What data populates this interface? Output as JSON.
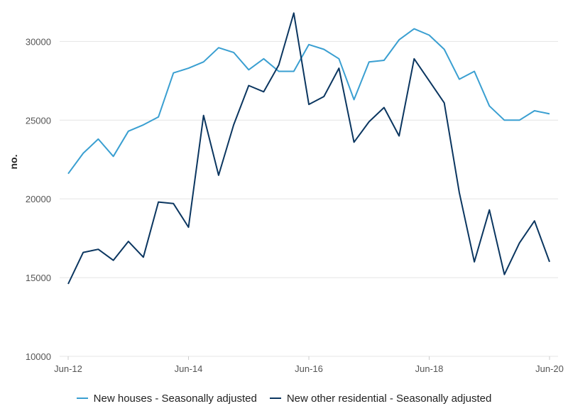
{
  "chart_data": {
    "type": "line",
    "ylabel": "no.",
    "ylim": [
      10000,
      32000
    ],
    "y_ticks": [
      10000,
      15000,
      20000,
      25000,
      30000
    ],
    "x": [
      "Jun-12",
      "Sep-12",
      "Dec-12",
      "Mar-13",
      "Jun-13",
      "Sep-13",
      "Dec-13",
      "Mar-14",
      "Jun-14",
      "Sep-14",
      "Dec-14",
      "Mar-15",
      "Jun-15",
      "Sep-15",
      "Dec-15",
      "Mar-16",
      "Jun-16",
      "Sep-16",
      "Dec-16",
      "Mar-17",
      "Jun-17",
      "Sep-17",
      "Dec-17",
      "Mar-18",
      "Jun-18",
      "Sep-18",
      "Dec-18",
      "Mar-19",
      "Jun-19",
      "Sep-19",
      "Dec-19",
      "Mar-20",
      "Jun-20"
    ],
    "x_tick_labels": [
      "Jun-12",
      "Jun-14",
      "Jun-16",
      "Jun-18",
      "Jun-20"
    ],
    "grid": true,
    "legend_position": "bottom",
    "series": [
      {
        "name": "New houses - Seasonally adjusted",
        "color": "#3a9fd1",
        "values": [
          21600,
          22900,
          23800,
          22700,
          24300,
          24700,
          25200,
          28000,
          28300,
          28700,
          29600,
          29300,
          28200,
          28900,
          28100,
          28100,
          29800,
          29500,
          28900,
          26300,
          28700,
          28800,
          30100,
          30800,
          30400,
          29500,
          27600,
          28100,
          25900,
          25000,
          25000,
          25600,
          25400
        ]
      },
      {
        "name": "New other residential - Seasonally adjusted",
        "color": "#0b3660",
        "values": [
          14600,
          16600,
          16800,
          16100,
          17300,
          16300,
          19800,
          19700,
          18200,
          25300,
          21500,
          24700,
          27200,
          26800,
          28500,
          31800,
          26000,
          26500,
          28300,
          23600,
          24900,
          25800,
          24000,
          28900,
          27500,
          26100,
          20400,
          16000,
          19300,
          15200,
          17200,
          18600,
          16000
        ]
      }
    ]
  }
}
